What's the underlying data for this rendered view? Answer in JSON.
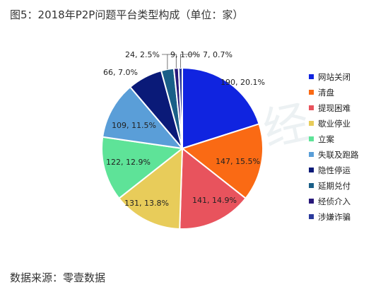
{
  "figure_title": "图5：2018年P2P问题平台类型构成（单位：家）",
  "source_text": "数据来源：零壹数据",
  "watermark_text": "零壹财经",
  "chart_data": {
    "type": "pie",
    "title": "图5：2018年P2P问题平台类型构成（单位：家）",
    "unit": "家",
    "legend_position": "right",
    "slices": [
      {
        "name": "网站关闭",
        "value": 190,
        "percent": 20.1,
        "label": "190, 20.1%",
        "color": "#1024e0"
      },
      {
        "name": "清盘",
        "value": 147,
        "percent": 15.5,
        "label": "147, 15.5%",
        "color": "#fa6a14"
      },
      {
        "name": "提现困难",
        "value": 141,
        "percent": 14.9,
        "label": "141, 14.9%",
        "color": "#e8535d"
      },
      {
        "name": "歇业停业",
        "value": 131,
        "percent": 13.8,
        "label": "131, 13.8%",
        "color": "#e8cc5a"
      },
      {
        "name": "立案",
        "value": 122,
        "percent": 12.9,
        "label": "122, 12.9%",
        "color": "#5ee398"
      },
      {
        "name": "失联及跑路",
        "value": 109,
        "percent": 11.5,
        "label": "109, 11.5%",
        "color": "#5a9ed8"
      },
      {
        "name": "隐性停运",
        "value": 66,
        "percent": 7.0,
        "label": "66, 7.0%",
        "color": "#0a1a78"
      },
      {
        "name": "延期兑付",
        "value": 24,
        "percent": 2.5,
        "label": "24, 2.5%",
        "color": "#1a5f88"
      },
      {
        "name": "经侦介入",
        "value": 9,
        "percent": 1.0,
        "label": "9, 1.0%",
        "color": "#28187a"
      },
      {
        "name": "涉嫌诈骗",
        "value": 7,
        "percent": 0.7,
        "label": "7, 0.7%",
        "color": "#2a3a9c"
      }
    ]
  }
}
